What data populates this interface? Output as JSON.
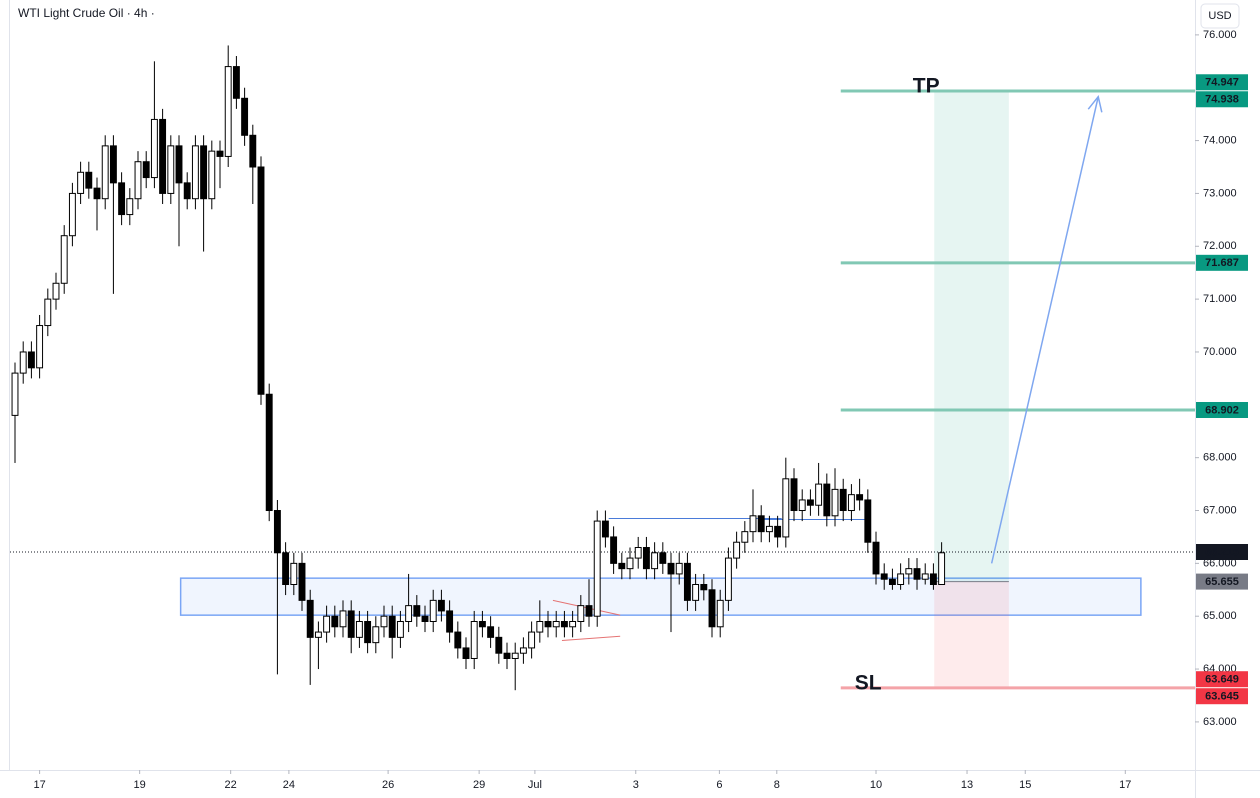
{
  "chart_data": {
    "type": "candlestick",
    "title": "WTI Light Crude Oil · 4h ·",
    "currency": "USD",
    "open": [
      68.8,
      69.6,
      70.0,
      69.7,
      70.5,
      71.0,
      71.3,
      72.2,
      73.0,
      73.4,
      73.1,
      72.9,
      73.9,
      73.2,
      72.6,
      72.9,
      73.6,
      73.3,
      74.4,
      73.0,
      73.9,
      73.2,
      72.9,
      73.9,
      72.9,
      73.8,
      73.7,
      75.4,
      74.8,
      74.1,
      73.5,
      69.2,
      67.0,
      66.2,
      65.6,
      66.0,
      65.3,
      64.6,
      64.7,
      65.0,
      64.8,
      65.1,
      64.6,
      64.9,
      64.5,
      64.8,
      65.0,
      64.6,
      64.9,
      65.2,
      65.0,
      64.9,
      65.3,
      65.1,
      64.7,
      64.4,
      64.2,
      64.9,
      64.8,
      64.6,
      64.3,
      64.2,
      64.3,
      64.4,
      64.7,
      64.9,
      64.8,
      64.9,
      64.8,
      64.9,
      65.2,
      65.0,
      66.8,
      66.5,
      66.0,
      65.9,
      66.1,
      66.3,
      65.9,
      66.2,
      66.0,
      65.8,
      66.0,
      65.3,
      65.6,
      65.5,
      64.8,
      65.3,
      66.1,
      66.4,
      66.6,
      66.9,
      66.6,
      66.7,
      66.5,
      67.6,
      67.0,
      67.2,
      67.1,
      67.5,
      66.9,
      67.4,
      67.0,
      67.3,
      67.2,
      66.4,
      65.8,
      65.7,
      65.6,
      65.8,
      65.9,
      65.7,
      65.8,
      65.6
    ],
    "high": [
      69.8,
      70.2,
      70.2,
      70.7,
      71.2,
      71.5,
      72.4,
      73.2,
      73.6,
      73.6,
      73.3,
      74.1,
      74.1,
      73.4,
      73.1,
      73.8,
      73.8,
      75.5,
      74.6,
      74.1,
      74.1,
      73.4,
      74.1,
      74.1,
      74.0,
      74.0,
      75.8,
      75.6,
      75.0,
      74.3,
      73.7,
      69.4,
      67.2,
      66.4,
      66.2,
      66.2,
      65.5,
      64.9,
      65.2,
      65.2,
      65.3,
      65.3,
      65.1,
      65.1,
      65.0,
      65.2,
      65.2,
      65.1,
      65.8,
      65.4,
      65.2,
      65.5,
      65.5,
      65.3,
      64.9,
      64.6,
      65.1,
      65.1,
      65.0,
      64.8,
      64.5,
      64.5,
      64.6,
      64.9,
      65.3,
      65.1,
      65.1,
      65.1,
      65.1,
      65.4,
      65.7,
      67.0,
      67.0,
      66.7,
      66.2,
      66.3,
      66.5,
      66.5,
      66.4,
      66.4,
      66.2,
      66.2,
      66.2,
      65.8,
      65.8,
      65.7,
      65.5,
      66.3,
      66.6,
      66.8,
      67.4,
      67.1,
      66.9,
      66.9,
      68.0,
      67.8,
      67.4,
      67.4,
      67.9,
      67.7,
      67.8,
      67.6,
      67.5,
      67.6,
      67.4,
      66.6,
      66.0,
      65.9,
      66.0,
      66.1,
      66.1,
      66.0,
      66.0,
      66.4
    ],
    "low": [
      67.9,
      69.4,
      69.5,
      69.5,
      70.3,
      70.8,
      71.1,
      72.0,
      72.8,
      72.9,
      72.3,
      72.7,
      71.1,
      72.4,
      72.4,
      72.7,
      73.1,
      73.1,
      72.8,
      72.8,
      72.0,
      72.7,
      72.7,
      71.9,
      72.7,
      73.1,
      73.5,
      74.6,
      73.9,
      72.8,
      69.0,
      66.8,
      63.9,
      65.4,
      65.4,
      65.1,
      63.7,
      64.0,
      64.5,
      64.6,
      64.6,
      64.3,
      64.4,
      64.3,
      64.3,
      64.6,
      64.2,
      64.4,
      64.7,
      64.8,
      64.7,
      64.7,
      64.9,
      64.5,
      64.2,
      64.0,
      64.0,
      64.6,
      64.4,
      64.1,
      64.0,
      63.6,
      64.1,
      64.2,
      64.5,
      64.6,
      64.6,
      64.6,
      64.6,
      64.7,
      64.8,
      64.8,
      66.3,
      65.8,
      65.7,
      65.7,
      65.9,
      65.7,
      65.7,
      65.8,
      64.7,
      65.6,
      65.1,
      65.1,
      65.3,
      64.6,
      64.6,
      65.1,
      65.9,
      66.2,
      66.4,
      66.4,
      66.4,
      66.3,
      66.3,
      66.8,
      66.8,
      66.9,
      66.9,
      66.7,
      66.7,
      66.8,
      66.8,
      67.0,
      66.2,
      65.6,
      65.5,
      65.5,
      65.5,
      65.6,
      65.5,
      65.6,
      65.5,
      65.6
    ],
    "close": [
      69.6,
      70.0,
      69.7,
      70.5,
      71.0,
      71.3,
      72.2,
      73.0,
      73.4,
      73.1,
      72.9,
      73.9,
      73.2,
      72.6,
      72.9,
      73.6,
      73.3,
      74.4,
      73.0,
      73.9,
      73.2,
      72.9,
      73.9,
      72.9,
      73.8,
      73.7,
      75.4,
      74.8,
      74.1,
      73.5,
      69.2,
      67.0,
      66.2,
      65.6,
      66.0,
      65.3,
      64.6,
      64.7,
      65.0,
      64.8,
      65.1,
      64.6,
      64.9,
      64.5,
      64.8,
      65.0,
      64.6,
      64.9,
      65.2,
      65.0,
      64.9,
      65.3,
      65.1,
      64.7,
      64.4,
      64.2,
      64.9,
      64.8,
      64.6,
      64.3,
      64.2,
      64.3,
      64.4,
      64.7,
      64.9,
      64.8,
      64.9,
      64.8,
      64.9,
      65.2,
      65.0,
      66.8,
      66.5,
      66.0,
      65.9,
      66.1,
      66.3,
      65.9,
      66.2,
      66.0,
      65.8,
      66.0,
      65.3,
      65.6,
      65.5,
      64.8,
      65.3,
      66.1,
      66.4,
      66.6,
      66.9,
      66.6,
      66.7,
      66.5,
      67.6,
      67.0,
      67.2,
      67.1,
      67.5,
      66.9,
      67.4,
      67.0,
      67.3,
      67.2,
      66.4,
      65.8,
      65.7,
      65.6,
      65.8,
      65.9,
      65.7,
      65.8,
      65.6,
      66.2
    ],
    "xlim": [
      -0.61,
      143.9
    ],
    "ylim": [
      62.09,
      76.66
    ],
    "xticks": [
      {
        "value": 3.0,
        "label": "17"
      },
      {
        "value": 15.2,
        "label": "19"
      },
      {
        "value": 26.3,
        "label": "22"
      },
      {
        "value": 33.4,
        "label": "24"
      },
      {
        "value": 45.5,
        "label": "26"
      },
      {
        "value": 56.6,
        "label": "29"
      },
      {
        "value": 63.4,
        "label": "Jul"
      },
      {
        "value": 75.7,
        "label": "3"
      },
      {
        "value": 85.9,
        "label": "6"
      },
      {
        "value": 92.9,
        "label": "8"
      },
      {
        "value": 105.0,
        "label": "10"
      },
      {
        "value": 116.1,
        "label": "13"
      },
      {
        "value": 123.2,
        "label": "15"
      },
      {
        "value": 135.4,
        "label": "17"
      }
    ],
    "yticks": [
      {
        "value": 76,
        "label": "76.000"
      },
      {
        "value": 74,
        "label": "74.000"
      },
      {
        "value": 73,
        "label": "73.000"
      },
      {
        "value": 72,
        "label": "72.000"
      },
      {
        "value": 71,
        "label": "71.000"
      },
      {
        "value": 70,
        "label": "70.000"
      },
      {
        "value": 68,
        "label": "68.000"
      },
      {
        "value": 67,
        "label": "67.000"
      },
      {
        "value": 66,
        "label": "66.000"
      },
      {
        "value": 65,
        "label": "65.000"
      },
      {
        "value": 64,
        "label": "64.000"
      },
      {
        "value": 63,
        "label": "63.000"
      }
    ],
    "up_color": "#ffffff",
    "down_color": "#000000",
    "levels": [
      {
        "value": 74.938,
        "label": "TP",
        "color": "#81c8b4"
      },
      {
        "value": 71.687,
        "color": "#81c8b4"
      },
      {
        "value": 68.902,
        "color": "#81c8b4"
      },
      {
        "value": 63.645,
        "label": "SL",
        "color": "#f4a3a8"
      }
    ],
    "levels_start": 100.7,
    "position": {
      "x": [
        112.1,
        121.2
      ],
      "entry": 65.655,
      "target": 74.938,
      "stop": 63.645
    },
    "zone": {
      "x": [
        20.2,
        137.3
      ],
      "y": [
        65.02,
        65.72
      ]
    },
    "drawings": [
      {
        "x": [
          72.4,
          93.5
        ],
        "y": [
          66.85,
          66.85
        ],
        "color": "#4a7bd9"
      },
      {
        "x": [
          91.0,
          104.0
        ],
        "y": [
          66.83,
          66.83
        ],
        "color": "#4a7bd9"
      },
      {
        "x": [
          65.6,
          73.8
        ],
        "y": [
          65.3,
          65.02
        ],
        "color": "#e57373"
      },
      {
        "x": [
          66.7,
          73.8
        ],
        "y": [
          64.54,
          64.62
        ],
        "color": "#e57373"
      }
    ],
    "arrow": {
      "x": [
        119.1,
        132.1
      ],
      "y": [
        66.0,
        74.83
      ],
      "color": "#7fa7f0"
    },
    "price_tags": [
      {
        "value": 74.947,
        "color": "#089981"
      },
      {
        "value": 74.938,
        "color": "#089981"
      },
      {
        "value": 71.687,
        "color": "#089981"
      },
      {
        "value": 68.902,
        "color": "#089981"
      },
      {
        "value": 66.215,
        "color": "#131722"
      },
      {
        "value": 65.655,
        "color": "#787b86"
      },
      {
        "value": 63.649,
        "color": "#f23645"
      },
      {
        "value": 63.645,
        "color": "#f23645"
      }
    ],
    "last_tag": 4
  }
}
